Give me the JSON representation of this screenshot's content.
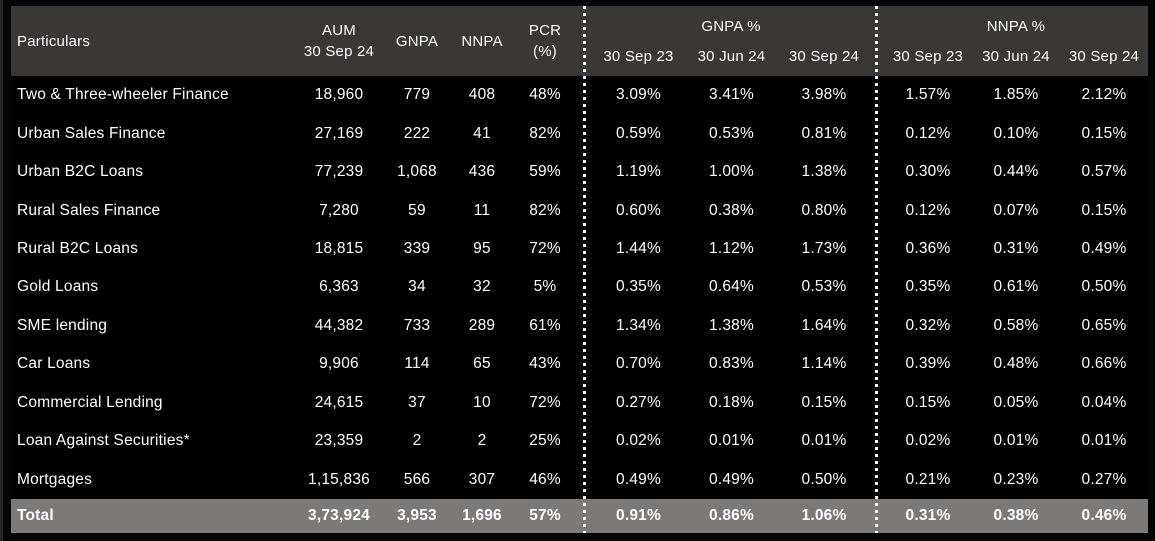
{
  "chart_data": {
    "type": "table",
    "header": {
      "particulars": "Particulars",
      "aum_line1": "AUM",
      "aum_line2": "30 Sep 24",
      "gnpa": "GNPA",
      "nnpa": "NNPA",
      "pcr_line1": "PCR",
      "pcr_line2": "(%)",
      "gnpa_group": "GNPA %",
      "nnpa_group": "NNPA %",
      "periods": [
        "30 Sep 23",
        "30 Jun 24",
        "30 Sep 24"
      ]
    },
    "rows": [
      {
        "particulars": "Two & Three-wheeler Finance",
        "aum": "18,960",
        "gnpa": "779",
        "nnpa": "408",
        "pcr": "48%",
        "gnpa_pct": [
          "3.09%",
          "3.41%",
          "3.98%"
        ],
        "nnpa_pct": [
          "1.57%",
          "1.85%",
          "2.12%"
        ]
      },
      {
        "particulars": "Urban Sales Finance",
        "aum": "27,169",
        "gnpa": "222",
        "nnpa": "41",
        "pcr": "82%",
        "gnpa_pct": [
          "0.59%",
          "0.53%",
          "0.81%"
        ],
        "nnpa_pct": [
          "0.12%",
          "0.10%",
          "0.15%"
        ]
      },
      {
        "particulars": "Urban B2C Loans",
        "aum": "77,239",
        "gnpa": "1,068",
        "nnpa": "436",
        "pcr": "59%",
        "gnpa_pct": [
          "1.19%",
          "1.00%",
          "1.38%"
        ],
        "nnpa_pct": [
          "0.30%",
          "0.44%",
          "0.57%"
        ]
      },
      {
        "particulars": "Rural Sales Finance",
        "aum": "7,280",
        "gnpa": "59",
        "nnpa": "11",
        "pcr": "82%",
        "gnpa_pct": [
          "0.60%",
          "0.38%",
          "0.80%"
        ],
        "nnpa_pct": [
          "0.12%",
          "0.07%",
          "0.15%"
        ]
      },
      {
        "particulars": "Rural B2C Loans",
        "aum": "18,815",
        "gnpa": "339",
        "nnpa": "95",
        "pcr": "72%",
        "gnpa_pct": [
          "1.44%",
          "1.12%",
          "1.73%"
        ],
        "nnpa_pct": [
          "0.36%",
          "0.31%",
          "0.49%"
        ]
      },
      {
        "particulars": "Gold Loans",
        "aum": "6,363",
        "gnpa": "34",
        "nnpa": "32",
        "pcr": "5%",
        "gnpa_pct": [
          "0.35%",
          "0.64%",
          "0.53%"
        ],
        "nnpa_pct": [
          "0.35%",
          "0.61%",
          "0.50%"
        ]
      },
      {
        "particulars": "SME lending",
        "aum": "44,382",
        "gnpa": "733",
        "nnpa": "289",
        "pcr": "61%",
        "gnpa_pct": [
          "1.34%",
          "1.38%",
          "1.64%"
        ],
        "nnpa_pct": [
          "0.32%",
          "0.58%",
          "0.65%"
        ]
      },
      {
        "particulars": "Car Loans",
        "aum": "9,906",
        "gnpa": "114",
        "nnpa": "65",
        "pcr": "43%",
        "gnpa_pct": [
          "0.70%",
          "0.83%",
          "1.14%"
        ],
        "nnpa_pct": [
          "0.39%",
          "0.48%",
          "0.66%"
        ]
      },
      {
        "particulars": "Commercial Lending",
        "aum": "24,615",
        "gnpa": "37",
        "nnpa": "10",
        "pcr": "72%",
        "gnpa_pct": [
          "0.27%",
          "0.18%",
          "0.15%"
        ],
        "nnpa_pct": [
          "0.15%",
          "0.05%",
          "0.04%"
        ]
      },
      {
        "particulars": "Loan Against Securities*",
        "aum": "23,359",
        "gnpa": "2",
        "nnpa": "2",
        "pcr": "25%",
        "gnpa_pct": [
          "0.02%",
          "0.01%",
          "0.01%"
        ],
        "nnpa_pct": [
          "0.02%",
          "0.01%",
          "0.01%"
        ]
      },
      {
        "particulars": "Mortgages",
        "aum": "1,15,836",
        "gnpa": "566",
        "nnpa": "307",
        "pcr": "46%",
        "gnpa_pct": [
          "0.49%",
          "0.49%",
          "0.50%"
        ],
        "nnpa_pct": [
          "0.21%",
          "0.23%",
          "0.27%"
        ]
      }
    ],
    "total": {
      "particulars": "Total",
      "aum": "3,73,924",
      "gnpa": "3,953",
      "nnpa": "1,696",
      "pcr": "57%",
      "gnpa_pct": [
        "0.91%",
        "0.86%",
        "1.06%"
      ],
      "nnpa_pct": [
        "0.31%",
        "0.38%",
        "0.46%"
      ]
    }
  },
  "colors": {
    "header_bg": "#3a3735",
    "body_bg": "#000000",
    "total_row_bg": "#7c7977",
    "text": "#ffffff",
    "separator_dots": "#ffffff"
  }
}
